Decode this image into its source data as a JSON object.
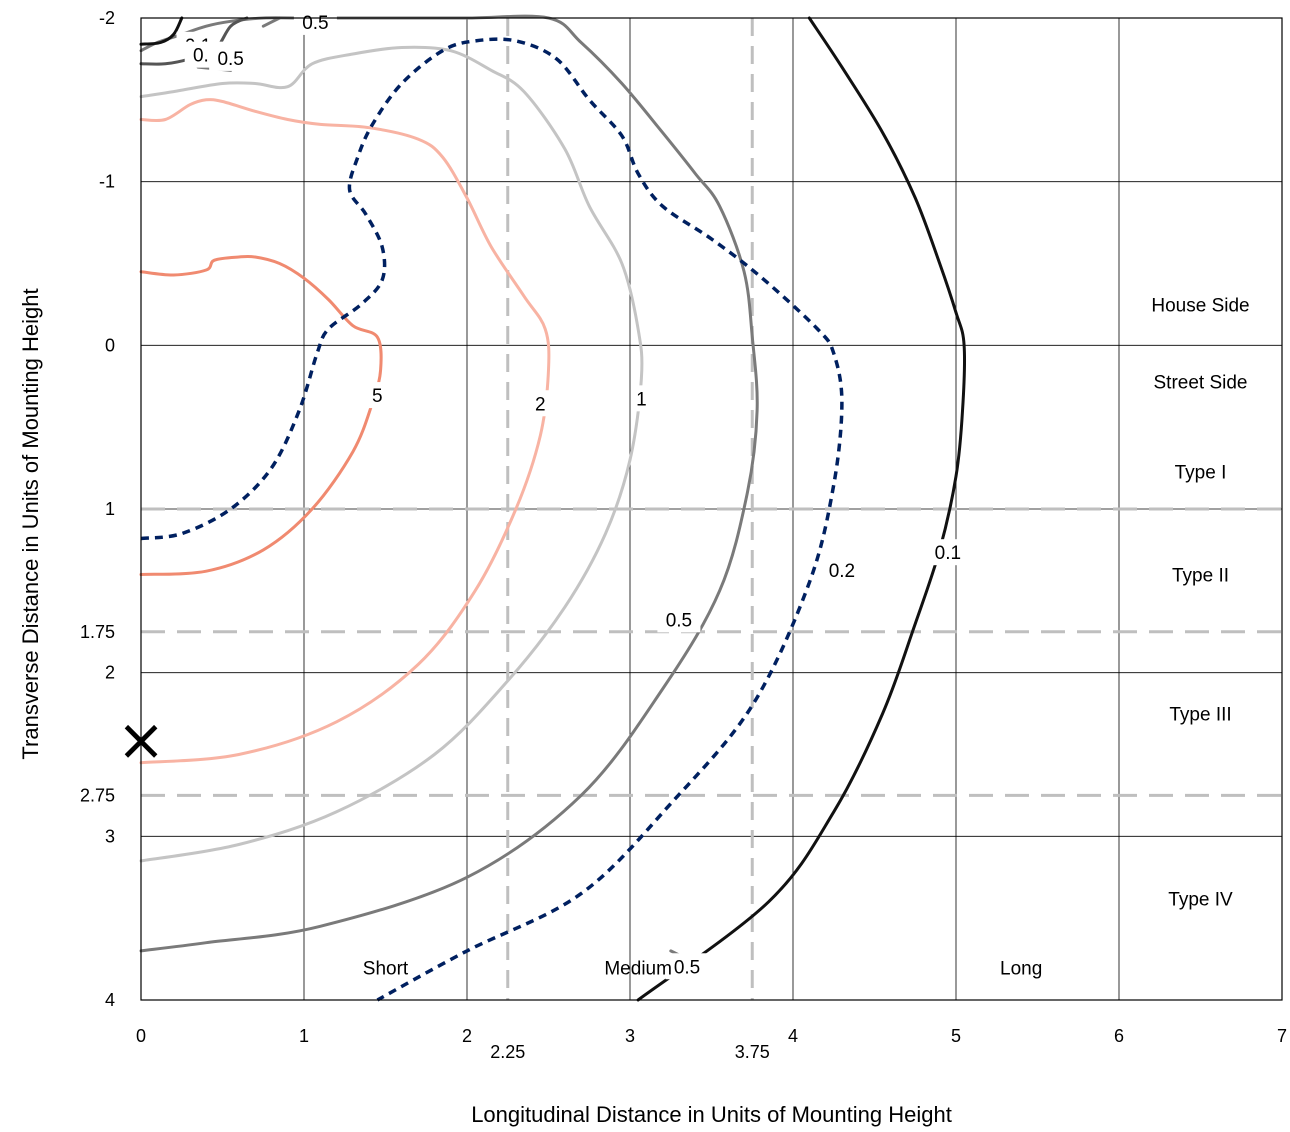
{
  "chart_data": {
    "type": "line",
    "title": "",
    "xlabel": "Longitudinal Distance in Units of Mounting Height",
    "ylabel": "Transverse Distance in Units of Mounting Height",
    "xlim": [
      0,
      7
    ],
    "ylim": [
      -2,
      4
    ],
    "y_axis_inverted": true,
    "grid": true,
    "x_ticks": [
      "0",
      "1",
      "2",
      "3",
      "4",
      "5",
      "6",
      "7"
    ],
    "x_tick_values": [
      0,
      1,
      2,
      3,
      4,
      5,
      6,
      7
    ],
    "y_ticks": [
      "-2",
      "-1",
      "0",
      "1",
      "2",
      "3",
      "4"
    ],
    "y_tick_values": [
      -2,
      -1,
      0,
      1,
      2,
      3,
      4
    ],
    "reference_lines": {
      "vertical": [
        {
          "value": 2.25,
          "label": "2.25"
        },
        {
          "value": 3.75,
          "label": "3.75"
        }
      ],
      "horizontal": [
        {
          "value": 1,
          "label": ""
        },
        {
          "value": 1.75,
          "label": "1.75"
        },
        {
          "value": 2.75,
          "label": "2.75"
        }
      ],
      "color": "#bfbfbf"
    },
    "region_labels": [
      {
        "text": "House Side",
        "x": 6.5,
        "y": -0.25
      },
      {
        "text": "Street Side",
        "x": 6.5,
        "y": 0.22
      },
      {
        "text": "Type I",
        "x": 6.5,
        "y": 0.77
      },
      {
        "text": "Type II",
        "x": 6.5,
        "y": 1.4
      },
      {
        "text": "Type III",
        "x": 6.5,
        "y": 2.25
      },
      {
        "text": "Type IV",
        "x": 6.5,
        "y": 3.38
      },
      {
        "text": "Short",
        "x": 1.5,
        "y": 3.8
      },
      {
        "text": "Medium",
        "x": 3.05,
        "y": 3.8
      },
      {
        "text": "Long",
        "x": 5.4,
        "y": 3.8
      }
    ],
    "luminaire_marker": {
      "symbol": "×",
      "x": 0,
      "y": 2.42
    },
    "series": [
      {
        "name": "5",
        "color": "#f08a70",
        "dashed": false,
        "label": {
          "text": "5",
          "x": 1.45,
          "y": 0.31
        },
        "points": [
          [
            0,
            -0.45
          ],
          [
            0.2,
            -0.43
          ],
          [
            0.4,
            -0.46
          ],
          [
            0.45,
            -0.52
          ],
          [
            0.6,
            -0.54
          ],
          [
            0.7,
            -0.54
          ],
          [
            0.85,
            -0.5
          ],
          [
            1.0,
            -0.41
          ],
          [
            1.15,
            -0.28
          ],
          [
            1.3,
            -0.12
          ],
          [
            1.45,
            -0.05
          ],
          [
            1.47,
            0.15
          ],
          [
            1.42,
            0.35
          ],
          [
            1.3,
            0.65
          ],
          [
            1.05,
            1.0
          ],
          [
            0.75,
            1.25
          ],
          [
            0.4,
            1.38
          ],
          [
            0,
            1.4
          ]
        ]
      },
      {
        "name": "2",
        "color": "#f8b3a3",
        "dashed": false,
        "label": {
          "text": "2",
          "x": 2.45,
          "y": 0.36
        },
        "points": [
          [
            0,
            -1.38
          ],
          [
            0.15,
            -1.38
          ],
          [
            0.3,
            -1.47
          ],
          [
            0.4,
            -1.5
          ],
          [
            0.5,
            -1.49
          ],
          [
            0.7,
            -1.43
          ],
          [
            0.9,
            -1.38
          ],
          [
            1.1,
            -1.35
          ],
          [
            1.4,
            -1.33
          ],
          [
            1.7,
            -1.26
          ],
          [
            1.85,
            -1.15
          ],
          [
            2.0,
            -0.9
          ],
          [
            2.15,
            -0.6
          ],
          [
            2.35,
            -0.3
          ],
          [
            2.48,
            -0.1
          ],
          [
            2.5,
            0.15
          ],
          [
            2.45,
            0.55
          ],
          [
            2.3,
            1.0
          ],
          [
            2.05,
            1.5
          ],
          [
            1.7,
            1.95
          ],
          [
            1.2,
            2.3
          ],
          [
            0.6,
            2.5
          ],
          [
            0,
            2.55
          ]
        ]
      },
      {
        "name": "1",
        "color": "#c4c4c4",
        "dashed": false,
        "label": {
          "text": "1",
          "x": 3.07,
          "y": 0.33
        },
        "points": [
          [
            0,
            -1.52
          ],
          [
            0.2,
            -1.55
          ],
          [
            0.5,
            -1.6
          ],
          [
            0.7,
            -1.6
          ],
          [
            0.9,
            -1.58
          ],
          [
            1.05,
            -1.72
          ],
          [
            1.3,
            -1.78
          ],
          [
            1.6,
            -1.82
          ],
          [
            1.9,
            -1.8
          ],
          [
            2.15,
            -1.68
          ],
          [
            2.35,
            -1.55
          ],
          [
            2.6,
            -1.2
          ],
          [
            2.75,
            -0.85
          ],
          [
            2.95,
            -0.5
          ],
          [
            3.05,
            -0.1
          ],
          [
            3.07,
            0.2
          ],
          [
            3.0,
            0.7
          ],
          [
            2.85,
            1.15
          ],
          [
            2.6,
            1.6
          ],
          [
            2.25,
            2.05
          ],
          [
            1.8,
            2.5
          ],
          [
            1.2,
            2.85
          ],
          [
            0.6,
            3.05
          ],
          [
            0,
            3.15
          ]
        ]
      },
      {
        "name": "0.5",
        "color": "#7a7a7a",
        "dashed": false,
        "label": {
          "text": "0.5",
          "x": 3.3,
          "y": 1.68
        },
        "points": [
          [
            0,
            -1.8
          ],
          [
            0.1,
            -1.85
          ],
          [
            0.25,
            -1.9
          ],
          [
            0.4,
            -1.95
          ],
          [
            0.55,
            -1.98
          ],
          [
            0.75,
            -2.0
          ],
          [
            1.0,
            -2.0
          ],
          [
            1.5,
            -2.0
          ],
          [
            2.0,
            -2.0
          ],
          [
            2.5,
            -2.0
          ],
          [
            2.7,
            -1.85
          ],
          [
            2.95,
            -1.6
          ],
          [
            3.2,
            -1.3
          ],
          [
            3.4,
            -1.05
          ],
          [
            3.55,
            -0.85
          ],
          [
            3.7,
            -0.45
          ],
          [
            3.75,
            -0.05
          ],
          [
            3.78,
            0.4
          ],
          [
            3.72,
            0.9
          ],
          [
            3.55,
            1.5
          ],
          [
            3.2,
            2.1
          ],
          [
            2.7,
            2.75
          ],
          [
            2.0,
            3.25
          ],
          [
            1.1,
            3.55
          ],
          [
            0.4,
            3.65
          ],
          [
            0,
            3.7
          ]
        ]
      },
      {
        "name": "0.2",
        "color": "#002060",
        "dashed": true,
        "label": {
          "text": "0.2",
          "x": 4.3,
          "y": 1.38
        },
        "points": [
          [
            0,
            1.18
          ],
          [
            0.25,
            1.15
          ],
          [
            0.55,
            1.0
          ],
          [
            0.8,
            0.75
          ],
          [
            0.97,
            0.4
          ],
          [
            1.08,
            0.05
          ],
          [
            1.15,
            -0.1
          ],
          [
            1.35,
            -0.25
          ],
          [
            1.48,
            -0.4
          ],
          [
            1.48,
            -0.6
          ],
          [
            1.38,
            -0.8
          ],
          [
            1.28,
            -0.95
          ],
          [
            1.33,
            -1.15
          ],
          [
            1.42,
            -1.35
          ],
          [
            1.6,
            -1.6
          ],
          [
            1.85,
            -1.8
          ],
          [
            2.05,
            -1.86
          ],
          [
            2.3,
            -1.86
          ],
          [
            2.55,
            -1.75
          ],
          [
            2.75,
            -1.5
          ],
          [
            2.95,
            -1.28
          ],
          [
            3.05,
            -1.05
          ],
          [
            3.2,
            -0.85
          ],
          [
            3.5,
            -0.65
          ],
          [
            3.8,
            -0.42
          ],
          [
            4.15,
            -0.1
          ],
          [
            4.25,
            0.05
          ],
          [
            4.3,
            0.35
          ],
          [
            4.25,
            0.85
          ],
          [
            4.1,
            1.45
          ],
          [
            3.75,
            2.2
          ],
          [
            3.25,
            2.8
          ],
          [
            2.7,
            3.35
          ],
          [
            2.0,
            3.7
          ],
          [
            1.45,
            4.0
          ]
        ]
      },
      {
        "name": "0.1",
        "color": "#111111",
        "dashed": false,
        "label": {
          "text": "0.1",
          "x": 4.95,
          "y": 1.27
        },
        "points": [
          [
            4.1,
            -2.0
          ],
          [
            4.3,
            -1.7
          ],
          [
            4.55,
            -1.3
          ],
          [
            4.75,
            -0.9
          ],
          [
            4.9,
            -0.5
          ],
          [
            5.0,
            -0.2
          ],
          [
            5.05,
            0.0
          ],
          [
            5.04,
            0.4
          ],
          [
            5.0,
            0.8
          ],
          [
            4.9,
            1.25
          ],
          [
            4.75,
            1.7
          ],
          [
            4.55,
            2.25
          ],
          [
            4.25,
            2.85
          ],
          [
            3.85,
            3.4
          ],
          [
            3.05,
            4.0
          ]
        ]
      },
      {
        "name": "0.1",
        "color": "#111111",
        "dashed": false,
        "label": {
          "text": "0.1",
          "x": 0.35,
          "y": -1.83
        },
        "points": [
          [
            0,
            -1.84
          ],
          [
            0.12,
            -1.85
          ],
          [
            0.2,
            -1.9
          ],
          [
            0.25,
            -2.0
          ]
        ]
      },
      {
        "name": "0.2",
        "color": "#555555",
        "dashed": false,
        "label": {
          "text": "0.2",
          "x": 0.4,
          "y": -1.77
        },
        "points": [
          [
            0,
            -1.72
          ],
          [
            0.15,
            -1.72
          ],
          [
            0.3,
            -1.75
          ],
          [
            0.45,
            -1.8
          ],
          [
            0.55,
            -1.95
          ],
          [
            0.65,
            -2.0
          ]
        ]
      },
      {
        "name": "0.5",
        "color": "#7a7a7a",
        "dashed": false,
        "label": {
          "text": "0.5",
          "x": 1.07,
          "y": -1.97
        },
        "points": [
          [
            0.75,
            -1.95
          ],
          [
            0.85,
            -2.0
          ]
        ]
      },
      {
        "name": "0.5",
        "color": "#7a7a7a",
        "dashed": false,
        "label": {
          "text": "0.5",
          "x": 0.55,
          "y": -1.75
        },
        "points": [
          [
            0.35,
            -1.7
          ],
          [
            0.55,
            -1.68
          ]
        ]
      },
      {
        "name": "0.5",
        "color": "#7a7a7a",
        "dashed": false,
        "label": {
          "text": "0.5",
          "x": 3.35,
          "y": 3.8
        },
        "points": [
          [
            3.25,
            3.7
          ],
          [
            3.45,
            3.8
          ]
        ]
      }
    ]
  }
}
